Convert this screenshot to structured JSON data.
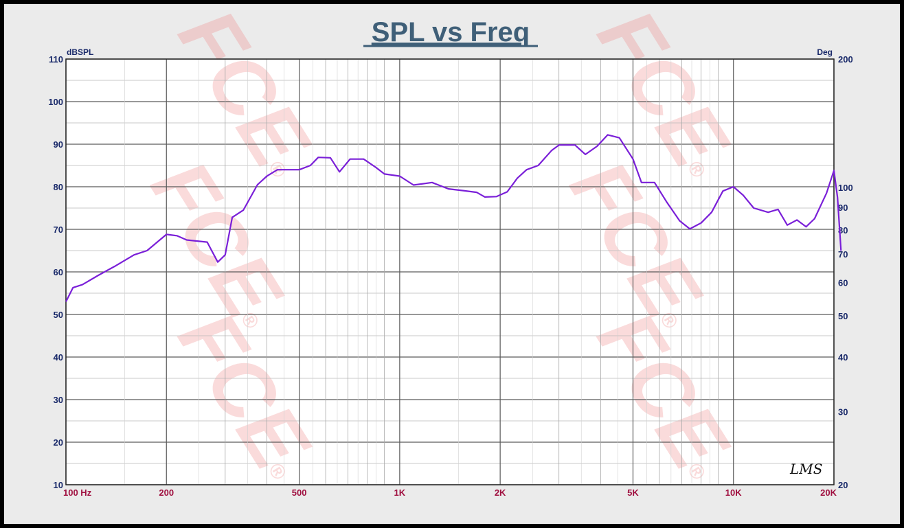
{
  "chart_data": {
    "type": "line",
    "title": "SPL vs Freq",
    "ylabel_left": "dBSPL",
    "ylabel_right": "Deg",
    "xscale": "log",
    "xlim": [
      100,
      20000
    ],
    "ylim": [
      10,
      110
    ],
    "grid": true,
    "xticks": [
      {
        "value": 100,
        "label": "100  Hz"
      },
      {
        "value": 200,
        "label": "200"
      },
      {
        "value": 500,
        "label": "500"
      },
      {
        "value": 1000,
        "label": "1K"
      },
      {
        "value": 2000,
        "label": "2K"
      },
      {
        "value": 5000,
        "label": "5K"
      },
      {
        "value": 10000,
        "label": "10K"
      },
      {
        "value": 20000,
        "label": "20K"
      }
    ],
    "yticks_left": [
      {
        "value": 110,
        "label": "110"
      },
      {
        "value": 100,
        "label": "100"
      },
      {
        "value": 90,
        "label": "90"
      },
      {
        "value": 80,
        "label": "80"
      },
      {
        "value": 70,
        "label": "70"
      },
      {
        "value": 60,
        "label": "60"
      },
      {
        "value": 50,
        "label": "50"
      },
      {
        "value": 40,
        "label": "40"
      },
      {
        "value": 30,
        "label": "30"
      },
      {
        "value": 20,
        "label": "20"
      },
      {
        "value": 10,
        "label": "10"
      }
    ],
    "yticks_right": [
      {
        "label": "200",
        "at_db": 110
      },
      {
        "label": "100",
        "at_db": 79.8
      },
      {
        "label": "90",
        "at_db": 75.2
      },
      {
        "label": "80",
        "at_db": 69.8
      },
      {
        "label": "70",
        "at_db": 64.2
      },
      {
        "label": "60",
        "at_db": 57.5
      },
      {
        "label": "50",
        "at_db": 49.7
      },
      {
        "label": "40",
        "at_db": 40.0
      },
      {
        "label": "30",
        "at_db": 27.2
      },
      {
        "label": "20",
        "at_db": 10
      }
    ],
    "series": [
      {
        "color": "#7a1fd8",
        "points": [
          [
            100,
            53
          ],
          [
            105,
            56.3
          ],
          [
            112,
            57
          ],
          [
            125,
            59.2
          ],
          [
            140,
            61.3
          ],
          [
            160,
            64
          ],
          [
            175,
            65
          ],
          [
            200,
            68.8
          ],
          [
            215,
            68.5
          ],
          [
            230,
            67.5
          ],
          [
            265,
            67
          ],
          [
            285,
            62.3
          ],
          [
            300,
            64
          ],
          [
            315,
            72.8
          ],
          [
            340,
            74.5
          ],
          [
            375,
            80.5
          ],
          [
            400,
            82.5
          ],
          [
            430,
            84
          ],
          [
            500,
            84
          ],
          [
            540,
            85
          ],
          [
            570,
            86.9
          ],
          [
            620,
            86.8
          ],
          [
            660,
            83.5
          ],
          [
            710,
            86.5
          ],
          [
            780,
            86.5
          ],
          [
            850,
            84.5
          ],
          [
            900,
            83
          ],
          [
            1000,
            82.5
          ],
          [
            1100,
            80.4
          ],
          [
            1250,
            81
          ],
          [
            1400,
            79.5
          ],
          [
            1550,
            79.1
          ],
          [
            1700,
            78.7
          ],
          [
            1800,
            77.6
          ],
          [
            1950,
            77.7
          ],
          [
            2100,
            78.8
          ],
          [
            2250,
            82
          ],
          [
            2400,
            84
          ],
          [
            2600,
            85
          ],
          [
            2850,
            88.5
          ],
          [
            3000,
            89.8
          ],
          [
            3350,
            89.8
          ],
          [
            3600,
            87.6
          ],
          [
            3900,
            89.5
          ],
          [
            4200,
            92.2
          ],
          [
            4550,
            91.5
          ],
          [
            5000,
            86.5
          ],
          [
            5300,
            81
          ],
          [
            5800,
            81
          ],
          [
            6300,
            76.5
          ],
          [
            6900,
            72
          ],
          [
            7400,
            70.1
          ],
          [
            8000,
            71.5
          ],
          [
            8600,
            74
          ],
          [
            9300,
            79
          ],
          [
            10000,
            80
          ],
          [
            10700,
            78
          ],
          [
            11500,
            75
          ],
          [
            12700,
            74
          ],
          [
            13600,
            74.7
          ],
          [
            14500,
            71
          ],
          [
            15500,
            72.2
          ],
          [
            16500,
            70.6
          ],
          [
            17500,
            72.5
          ],
          [
            19000,
            78.5
          ],
          [
            20000,
            83.8
          ],
          [
            20500,
            77.5
          ],
          [
            21000,
            65
          ]
        ]
      }
    ]
  },
  "watermark": {
    "text": "FCE",
    "registered": "®"
  },
  "signature": "LMS"
}
